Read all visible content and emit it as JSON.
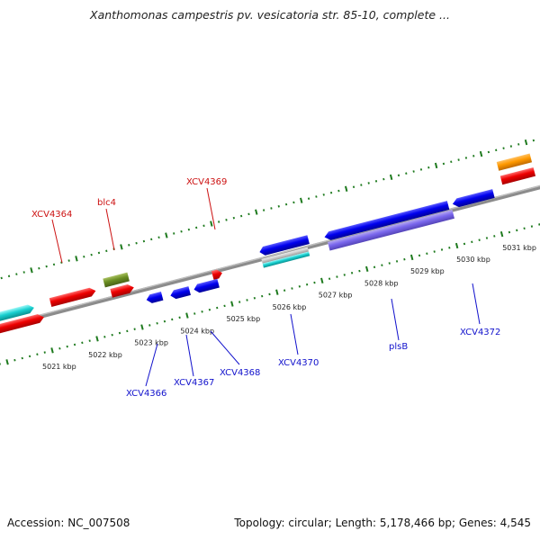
{
  "title": "Xanthomonas campestris pv. vesicatoria str. 85-10, complete ...",
  "footer": {
    "accession": "Accession: NC_007508",
    "summary": "Topology: circular; Length: 5,178,466 bp; Genes: 4,545"
  },
  "colors": {
    "backbone": "#8a8a8a",
    "tick": "#1e7a1e",
    "label_top": "#cc1111",
    "label_bottom": "#1111cc"
  },
  "kbp_labels": [
    "5021 kbp",
    "5022 kbp",
    "5023 kbp",
    "5024 kbp",
    "5025 kbp",
    "5026 kbp",
    "5027 kbp",
    "5028 kbp",
    "5029 kbp",
    "5030 kbp",
    "5031 kbp"
  ],
  "genes_top": [
    {
      "name": "XCV4364"
    },
    {
      "name": "blc4"
    },
    {
      "name": "XCV4369"
    }
  ],
  "genes_bottom": [
    {
      "name": "XCV4366"
    },
    {
      "name": "XCV4367"
    },
    {
      "name": "XCV4368"
    },
    {
      "name": "XCV4370"
    },
    {
      "name": "plsB"
    },
    {
      "name": "XCV4372"
    }
  ]
}
